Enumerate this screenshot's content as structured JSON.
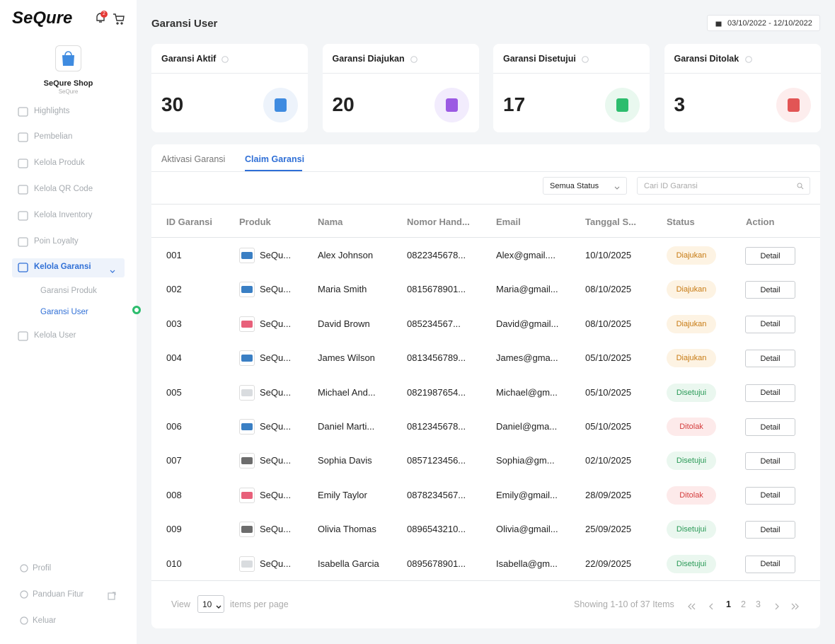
{
  "sidebar": {
    "brand": "SeQure",
    "notification_count": "2",
    "shop_name": "SeQure Shop",
    "shop_subtitle": "SeQure",
    "menu": [
      "Highlights",
      "Pembelian",
      "Kelola Produk",
      "Kelola QR Code",
      "Kelola Inventory",
      "Poin Loyalty",
      "Kelola Garansi",
      "Kelola User"
    ],
    "submenu": [
      "Garansi Produk",
      "Garansi User"
    ],
    "bottom_menu": [
      "Profil",
      "Panduan Fitur",
      "Keluar"
    ]
  },
  "header": {
    "title": "Garansi User",
    "date_range": "03/10/2022 - 12/10/2022"
  },
  "stats": [
    {
      "label": "Garansi Aktif",
      "value": 30
    },
    {
      "label": "Garansi Diajukan",
      "value": 20
    },
    {
      "label": "Garansi Disetujui",
      "value": 17
    },
    {
      "label": "Garansi Ditolak",
      "value": 3
    }
  ],
  "tabs": [
    "Aktivasi Garansi",
    "Claim Garansi"
  ],
  "filters": {
    "status": "Semua Status",
    "search_placeholder": "Cari ID Garansi"
  },
  "table": {
    "columns": [
      "ID Garansi",
      "Produk",
      "Nama",
      "Nomor Hand...",
      "Email",
      "Tanggal S...",
      "Status",
      "Action"
    ],
    "rows": [
      [
        "001",
        "SeQu...",
        "Alex Johnson",
        "0822345678...",
        "Alex@gmail....",
        "10/10/2025",
        "Diajukan",
        "Detail"
      ],
      [
        "002",
        "SeQu...",
        "Maria Smith",
        "0815678901...",
        "Maria@gmail...",
        "08/10/2025",
        "Diajukan",
        "Detail"
      ],
      [
        "003",
        "SeQu...",
        "David Brown",
        "085234567...",
        "David@gmail...",
        "08/10/2025",
        "Diajukan",
        "Detail"
      ],
      [
        "004",
        "SeQu...",
        "James Wilson",
        "0813456789...",
        "James@gma...",
        "05/10/2025",
        "Diajukan",
        "Detail"
      ],
      [
        "005",
        "SeQu...",
        "Michael And...",
        "0821987654...",
        "Michael@gm...",
        "05/10/2025",
        "Disetujui",
        "Detail"
      ],
      [
        "006",
        "SeQu...",
        "Daniel Marti...",
        "0812345678...",
        "Daniel@gma...",
        "05/10/2025",
        "Ditolak",
        "Detail"
      ],
      [
        "007",
        "SeQu...",
        "Sophia Davis",
        "0857123456...",
        "Sophia@gm...",
        "02/10/2025",
        "Disetujui",
        "Detail"
      ],
      [
        "008",
        "SeQu...",
        "Emily Taylor",
        "0878234567...",
        "Emily@gmail...",
        "28/09/2025",
        "Ditolak",
        "Detail"
      ],
      [
        "009",
        "SeQu...",
        "Olivia Thomas",
        "0896543210...",
        "Olivia@gmail...",
        "25/09/2025",
        "Disetujui",
        "Detail"
      ],
      [
        "010",
        "SeQu...",
        "Isabella Garcia",
        "0895678901...",
        "Isabella@gm...",
        "22/09/2025",
        "Disetujui",
        "Detail"
      ]
    ]
  },
  "pagination": {
    "view": "View",
    "per_page": "10",
    "per_page_suffix": "items per page",
    "summary": "Showing 1-10 of 37 Items",
    "pages": [
      "1",
      "2",
      "3"
    ]
  }
}
